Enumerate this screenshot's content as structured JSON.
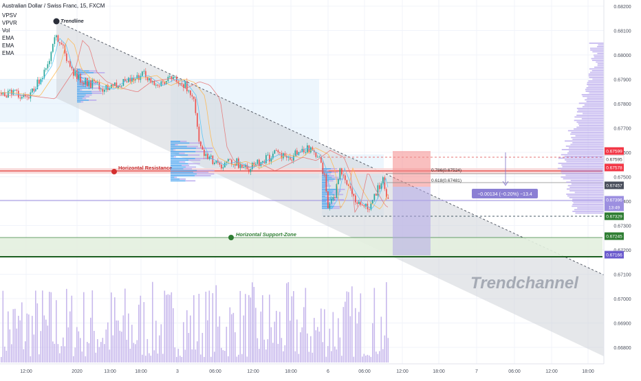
{
  "chart_data": {
    "type": "candlestick",
    "symbol_title": "Australian Dollar / Swiss Franc, 15, FXCM",
    "indicators": [
      "VPSV",
      "VPVR",
      "Vol",
      "EMA",
      "EMA",
      "EMA"
    ],
    "y_axis": {
      "range": [
        0.6675,
        0.6822
      ],
      "ticks": [
        "0.68200",
        "0.68100",
        "0.68000",
        "0.67900",
        "0.67800",
        "0.67700",
        "0.67600",
        "0.67500",
        "0.67400",
        "0.67300",
        "0.67200",
        "0.67100",
        "0.67000",
        "0.66900",
        "0.66800"
      ]
    },
    "x_axis": {
      "ticks": [
        "12:00",
        "2020",
        "13:00",
        "18:00",
        "3",
        "06:00",
        "12:00",
        "18:00",
        "6",
        "06:00",
        "12:00",
        "18:00",
        "7",
        "06:00",
        "12:00",
        "18:00"
      ]
    },
    "price_labels": [
      {
        "value": "0.67599",
        "color": "#f23645"
      },
      {
        "value": "0.67595",
        "color": "#ffffff"
      },
      {
        "value": "0.67578",
        "color": "#f23645"
      },
      {
        "value": "0.67457",
        "color": "#4a4f5c"
      },
      {
        "value": "0.67396",
        "color": "#9c8fe0"
      },
      {
        "value": "13:49",
        "color": "#9c8fe0"
      },
      {
        "value": "0.67329",
        "color": "#2e7d32"
      },
      {
        "value": "0.67245",
        "color": "#2e7d32"
      },
      {
        "value": "0.67166",
        "color": "#6a5acd"
      }
    ],
    "annotations": {
      "trendline": "Trendline",
      "horizontal_resistance": "Horizontal Resistance",
      "horizontal_support": "Horizontal Support-Zone",
      "trendchannel": "Trendchannel",
      "fib_786": "0.786(0.67524)",
      "fib_618": "0.618(0.67481)",
      "measure": "−0.00134 (−0.20%) −13.4"
    },
    "levels": {
      "resistance": 0.6757,
      "support_top": 0.6725,
      "support_bottom": 0.6717,
      "current": 0.67396,
      "dashed_high": 0.67595,
      "dashed_low": 0.67329
    },
    "colors": {
      "up": "#26a69a",
      "down": "#ef5350",
      "resistance": "#e53935",
      "support": "#2e7d32",
      "channel_fill": "#cfd3d9",
      "volume": "#c7b8ec",
      "current_line": "#9c8fe0"
    }
  }
}
